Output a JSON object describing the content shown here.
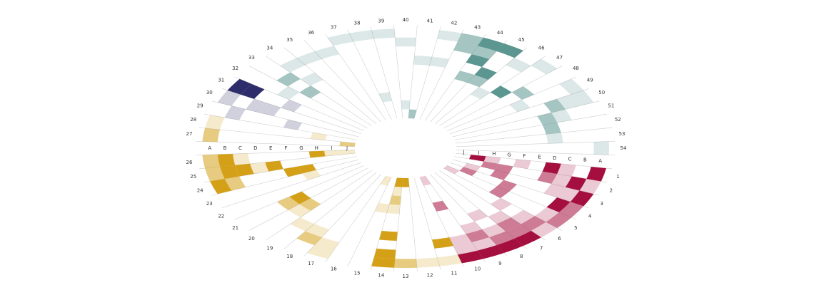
{
  "chart_data": {
    "type": "circular-heatmap",
    "sectors": [
      "1",
      "2",
      "3",
      "4",
      "5",
      "6",
      "7",
      "8",
      "9",
      "10",
      "11",
      "12",
      "13",
      "14",
      "15",
      "16",
      "17",
      "18",
      "19",
      "20",
      "21",
      "22",
      "23",
      "24",
      "25",
      "26",
      "27",
      "28",
      "29",
      "30",
      "31",
      "32",
      "33",
      "34",
      "35",
      "36",
      "37",
      "38",
      "39",
      "40",
      "41",
      "42",
      "43",
      "44",
      "45",
      "46",
      "47",
      "48",
      "49",
      "50",
      "51",
      "52",
      "53",
      "54"
    ],
    "rings": [
      "A",
      "B",
      "C",
      "D",
      "E",
      "F",
      "G",
      "H",
      "I",
      "J"
    ],
    "sector_colors": [
      "#a50f3f",
      "#a50f3f",
      "#a50f3f",
      "#a50f3f",
      "#a50f3f",
      "#a50f3f",
      "#a50f3f",
      "#a50f3f",
      "#a50f3f",
      "#a50f3f",
      "#d4a017",
      "#d4a017",
      "#d4a017",
      "#d4a017",
      "#d4a017",
      "#d4a017",
      "#d4a017",
      "#d4a017",
      "#d4a017",
      "#d4a017",
      "#d4a017",
      "#d4a017",
      "#d4a017",
      "#d4a017",
      "#d4a017",
      "#d4a017",
      "#d4a017",
      "#d4a017",
      "#2e2d6b",
      "#2e2d6b",
      "#2e2d6b",
      "#5b9690",
      "#5b9690",
      "#5b9690",
      "#5b9690",
      "#5b9690",
      "#5b9690",
      "#5b9690",
      "#5b9690",
      "#5b9690",
      "#5b9690",
      "#5b9690",
      "#5b9690",
      "#5b9690",
      "#5b9690",
      "#5b9690",
      "#5b9690",
      "#5b9690",
      "#5b9690",
      "#5b9690",
      "#5b9690",
      "#5b9690",
      "#5b9690",
      "#5b9690"
    ],
    "values": [
      [
        3,
        0,
        1,
        3,
        0,
        1,
        0,
        1,
        3,
        0
      ],
      [
        1,
        3,
        1,
        2,
        0,
        0,
        2,
        2,
        0,
        0
      ],
      [
        3,
        1,
        1,
        0,
        0,
        0,
        2,
        0,
        1,
        0
      ],
      [
        2,
        3,
        0,
        0,
        0,
        2,
        0,
        0,
        2,
        0
      ],
      [
        2,
        1,
        0,
        0,
        0,
        2,
        0,
        0,
        0,
        1
      ],
      [
        1,
        2,
        1,
        0,
        1,
        0,
        0,
        0,
        0,
        0
      ],
      [
        3,
        2,
        2,
        1,
        0,
        0,
        0,
        0,
        0,
        0
      ],
      [
        3,
        2,
        1,
        0,
        1,
        0,
        0,
        0,
        0,
        0
      ],
      [
        3,
        1,
        2,
        1,
        0,
        0,
        0,
        0,
        0,
        0
      ],
      [
        3,
        1,
        1,
        0,
        0,
        0,
        2,
        0,
        0,
        1
      ],
      [
        1,
        0,
        3,
        0,
        0,
        0,
        0,
        0,
        0,
        0
      ],
      [
        1,
        0,
        0,
        0,
        0,
        0,
        0,
        0,
        0,
        0
      ],
      [
        2,
        0,
        0,
        0,
        0,
        0,
        0,
        0,
        0,
        3
      ],
      [
        3,
        3,
        0,
        3,
        0,
        0,
        1,
        2,
        1,
        3
      ],
      [
        0,
        0,
        0,
        0,
        0,
        0,
        1,
        0,
        0,
        0
      ],
      [
        0,
        0,
        0,
        0,
        0,
        0,
        0,
        0,
        0,
        1
      ],
      [
        1,
        1,
        0,
        0,
        0,
        0,
        0,
        0,
        0,
        0
      ],
      [
        0,
        2,
        1,
        0,
        0,
        0,
        0,
        0,
        0,
        0
      ],
      [
        0,
        0,
        1,
        0,
        0,
        0,
        0,
        0,
        0,
        0
      ],
      [
        0,
        0,
        0,
        1,
        2,
        0,
        0,
        0,
        0,
        0
      ],
      [
        0,
        0,
        0,
        2,
        3,
        0,
        0,
        0,
        0,
        0
      ],
      [
        0,
        0,
        0,
        0,
        0,
        0,
        0,
        0,
        0,
        0
      ],
      [
        0,
        0,
        0,
        0,
        0,
        0,
        1,
        0,
        0,
        0
      ],
      [
        3,
        2,
        0,
        0,
        0,
        3,
        3,
        0,
        0,
        0
      ],
      [
        2,
        3,
        3,
        1,
        3,
        0,
        0,
        0,
        0,
        0
      ],
      [
        2,
        3,
        1,
        0,
        0,
        0,
        0,
        3,
        1,
        1
      ],
      [
        2,
        0,
        0,
        0,
        0,
        0,
        0,
        0,
        0,
        2
      ],
      [
        1,
        0,
        0,
        0,
        0,
        0,
        0,
        1,
        0,
        0
      ],
      [
        0,
        1,
        0,
        0,
        0,
        1,
        0,
        0,
        0,
        0
      ],
      [
        1,
        0,
        1,
        1,
        0,
        0,
        0,
        0,
        0,
        0
      ],
      [
        3,
        3,
        0,
        0,
        1,
        0,
        0,
        0,
        0,
        0
      ],
      [
        0,
        0,
        0,
        1,
        0,
        0,
        0,
        0,
        0,
        0
      ],
      [
        0,
        0,
        2,
        0,
        2,
        0,
        0,
        0,
        0,
        0
      ],
      [
        0,
        1,
        0,
        1,
        0,
        0,
        0,
        0,
        0,
        0
      ],
      [
        0,
        1,
        0,
        0,
        0,
        0,
        0,
        0,
        0,
        0
      ],
      [
        0,
        1,
        0,
        0,
        0,
        0,
        0,
        0,
        0,
        0
      ],
      [
        1,
        0,
        0,
        0,
        0,
        0,
        0,
        0,
        0,
        0
      ],
      [
        1,
        0,
        0,
        0,
        0,
        0,
        0,
        1,
        0,
        0
      ],
      [
        1,
        0,
        0,
        0,
        0,
        0,
        0,
        0,
        0,
        0
      ],
      [
        0,
        1,
        0,
        0,
        0,
        0,
        0,
        0,
        1,
        0
      ],
      [
        0,
        0,
        0,
        1,
        0,
        0,
        0,
        0,
        0,
        2
      ],
      [
        1,
        0,
        0,
        1,
        0,
        0,
        0,
        0,
        0,
        0
      ],
      [
        2,
        2,
        0,
        0,
        0,
        0,
        0,
        0,
        0,
        0
      ],
      [
        3,
        2,
        3,
        0,
        2,
        0,
        0,
        0,
        0,
        0
      ],
      [
        3,
        0,
        0,
        3,
        2,
        0,
        0,
        0,
        0,
        0
      ],
      [
        0,
        1,
        0,
        0,
        0,
        1,
        0,
        0,
        0,
        0
      ],
      [
        1,
        0,
        0,
        0,
        3,
        0,
        0,
        0,
        0,
        0
      ],
      [
        0,
        0,
        0,
        2,
        0,
        0,
        0,
        0,
        0,
        0
      ],
      [
        1,
        0,
        0,
        0,
        1,
        0,
        0,
        0,
        0,
        0
      ],
      [
        1,
        1,
        2,
        0,
        0,
        0,
        0,
        0,
        0,
        0
      ],
      [
        0,
        0,
        1,
        2,
        0,
        0,
        0,
        0,
        0,
        0
      ],
      [
        0,
        0,
        0,
        2,
        0,
        0,
        0,
        0,
        0,
        0
      ],
      [
        0,
        0,
        0,
        1,
        0,
        0,
        0,
        0,
        0,
        0
      ],
      [
        1,
        0,
        0,
        0,
        0,
        0,
        0,
        0,
        0,
        0
      ]
    ]
  }
}
